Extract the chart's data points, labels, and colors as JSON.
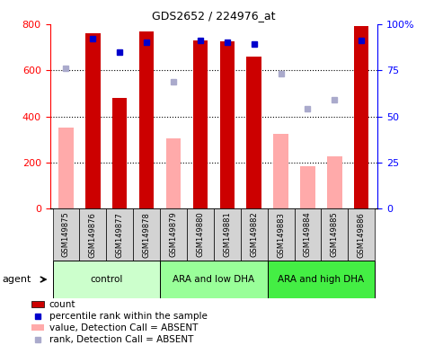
{
  "title": "GDS2652 / 224976_at",
  "samples": [
    "GSM149875",
    "GSM149876",
    "GSM149877",
    "GSM149878",
    "GSM149879",
    "GSM149880",
    "GSM149881",
    "GSM149882",
    "GSM149883",
    "GSM149884",
    "GSM149885",
    "GSM149886"
  ],
  "groups": [
    {
      "label": "control",
      "color": "#ccffcc",
      "start": 0,
      "end": 4
    },
    {
      "label": "ARA and low DHA",
      "color": "#99ff99",
      "start": 4,
      "end": 8
    },
    {
      "label": "ARA and high DHA",
      "color": "#44ee44",
      "start": 8,
      "end": 12
    }
  ],
  "count_present": [
    null,
    760,
    480,
    770,
    null,
    730,
    725,
    658,
    null,
    null,
    null,
    790
  ],
  "count_absent": [
    350,
    null,
    null,
    null,
    305,
    null,
    null,
    null,
    325,
    185,
    228,
    null
  ],
  "rank_present": [
    null,
    92,
    85,
    90,
    null,
    91,
    90,
    89,
    null,
    null,
    null,
    91
  ],
  "rank_absent": [
    76,
    null,
    null,
    null,
    69,
    null,
    null,
    null,
    73,
    54,
    59,
    null
  ],
  "ylim": [
    0,
    800
  ],
  "y2lim": [
    0,
    100
  ],
  "yticks_left": [
    0,
    200,
    400,
    600,
    800
  ],
  "yticks_right": [
    0,
    25,
    50,
    75,
    100
  ],
  "bar_color_present": "#cc0000",
  "bar_color_absent": "#ffaaaa",
  "rank_color_present": "#0000cc",
  "rank_color_absent": "#aaaacc",
  "bar_width": 0.55,
  "legend_items": [
    {
      "label": "count",
      "color": "#cc0000",
      "type": "rect"
    },
    {
      "label": "percentile rank within the sample",
      "color": "#0000cc",
      "type": "square"
    },
    {
      "label": "value, Detection Call = ABSENT",
      "color": "#ffaaaa",
      "type": "rect"
    },
    {
      "label": "rank, Detection Call = ABSENT",
      "color": "#aaaacc",
      "type": "square"
    }
  ],
  "agent_label": "agent",
  "xlabel_gray": "#d3d3d3",
  "group_colors": [
    "#ccffcc",
    "#99ff99",
    "#44ee44"
  ]
}
